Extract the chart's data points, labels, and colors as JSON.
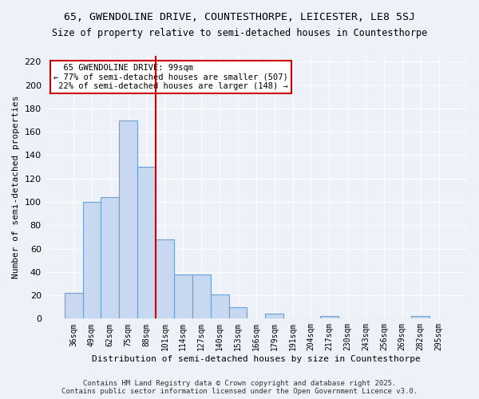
{
  "title1": "65, GWENDOLINE DRIVE, COUNTESTHORPE, LEICESTER, LE8 5SJ",
  "title2": "Size of property relative to semi-detached houses in Countesthorpe",
  "xlabel": "Distribution of semi-detached houses by size in Countesthorpe",
  "ylabel": "Number of semi-detached properties",
  "bins": [
    "36sqm",
    "49sqm",
    "62sqm",
    "75sqm",
    "88sqm",
    "101sqm",
    "114sqm",
    "127sqm",
    "140sqm",
    "153sqm",
    "166sqm",
    "179sqm",
    "191sqm",
    "204sqm",
    "217sqm",
    "230sqm",
    "243sqm",
    "256sqm",
    "269sqm",
    "282sqm",
    "295sqm"
  ],
  "values": [
    22,
    100,
    104,
    170,
    130,
    68,
    38,
    38,
    21,
    10,
    0,
    4,
    0,
    0,
    2,
    0,
    0,
    0,
    0,
    2,
    0
  ],
  "property_label": "65 GWENDOLINE DRIVE: 99sqm",
  "pct_smaller": 77,
  "pct_smaller_count": 507,
  "pct_larger": 22,
  "pct_larger_count": 148,
  "vline_position": 5,
  "bar_color": "#c8d8f0",
  "bar_edge_color": "#6a9fd8",
  "vline_color": "#cc0000",
  "annotation_box_color": "#cc0000",
  "background_color": "#eef2f8",
  "grid_color": "#ffffff",
  "ylim": [
    0,
    225
  ],
  "yticks": [
    0,
    20,
    40,
    60,
    80,
    100,
    120,
    140,
    160,
    180,
    200,
    220
  ],
  "footer": "Contains HM Land Registry data © Crown copyright and database right 2025.\nContains public sector information licensed under the Open Government Licence v3.0."
}
